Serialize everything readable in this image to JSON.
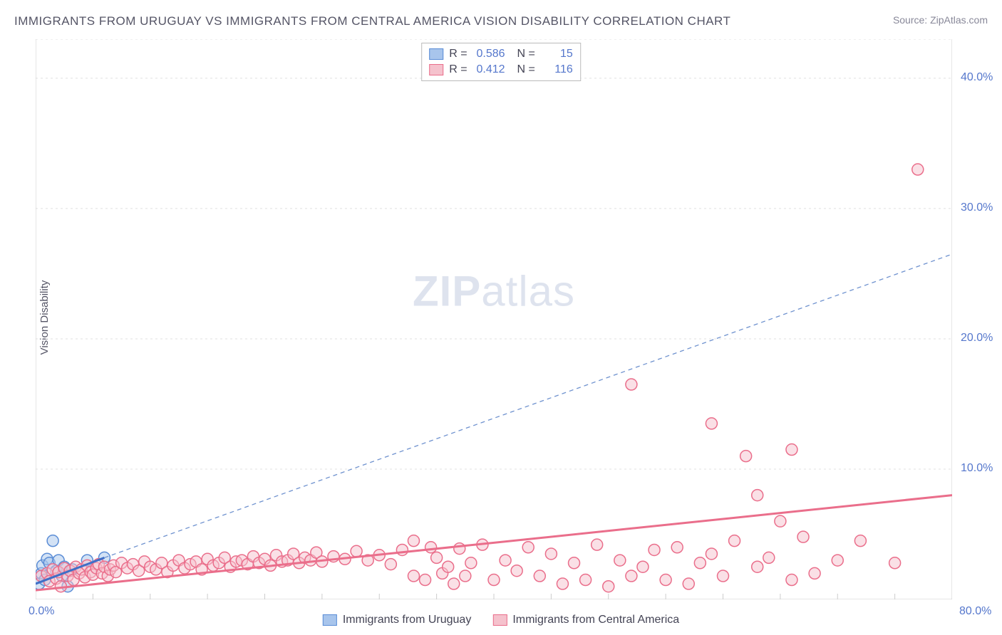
{
  "title": "IMMIGRANTS FROM URUGUAY VS IMMIGRANTS FROM CENTRAL AMERICA VISION DISABILITY CORRELATION CHART",
  "source": "Source: ZipAtlas.com",
  "watermark": {
    "zip": "ZIP",
    "atlas": "atlas"
  },
  "ylabel": "Vision Disability",
  "chart": {
    "type": "scatter",
    "background_color": "#ffffff",
    "grid_color": "#e0e0e0",
    "axis_line_color": "#cccccc",
    "xlim": [
      0,
      80
    ],
    "ylim": [
      0,
      43
    ],
    "x_ticks": [
      0,
      5,
      10,
      15,
      20,
      25,
      30,
      35,
      40,
      45,
      50,
      55,
      60,
      65,
      70,
      75,
      80
    ],
    "x_tick_labels": {
      "0": "0.0%",
      "80": "80.0%"
    },
    "y_gridlines": [
      10,
      20,
      30,
      40
    ],
    "y_tick_labels": {
      "10": "10.0%",
      "20": "20.0%",
      "30": "30.0%",
      "40": "40.0%"
    },
    "axis_label_color": "#5577cc",
    "axis_label_fontsize": 16,
    "marker_radius": 8,
    "marker_stroke_width": 1.5,
    "series": [
      {
        "name": "Immigrants from Uruguay",
        "R": "0.586",
        "N": "15",
        "fill_color": "#a8c5ec",
        "stroke_color": "#5b8dd6",
        "fill_opacity": 0.5,
        "trend_line": {
          "x1": 0,
          "y1": 1.2,
          "x2": 6,
          "y2": 3.2,
          "color": "#3f6fc7",
          "width": 3,
          "dash": "none"
        },
        "trend_extrapolation": {
          "x1": 6,
          "y1": 3.2,
          "x2": 80,
          "y2": 26.5,
          "color": "#6f92cf",
          "width": 1.3,
          "dash": "6,5"
        },
        "points": [
          [
            0.3,
            1.2
          ],
          [
            0.5,
            2.0
          ],
          [
            0.6,
            2.6
          ],
          [
            0.8,
            1.5
          ],
          [
            1.0,
            3.1
          ],
          [
            1.2,
            2.8
          ],
          [
            1.5,
            4.5
          ],
          [
            1.8,
            2.2
          ],
          [
            2.0,
            3.0
          ],
          [
            2.3,
            1.8
          ],
          [
            2.5,
            2.5
          ],
          [
            2.8,
            1.0
          ],
          [
            3.2,
            2.3
          ],
          [
            4.5,
            3.0
          ],
          [
            6.0,
            3.2
          ]
        ]
      },
      {
        "name": "Immigrants from Central America",
        "R": "0.412",
        "N": "116",
        "fill_color": "#f5c2cd",
        "stroke_color": "#ea6e8b",
        "fill_opacity": 0.5,
        "trend_line": {
          "x1": 0,
          "y1": 0.7,
          "x2": 80,
          "y2": 8.0,
          "color": "#ea6e8b",
          "width": 3,
          "dash": "none"
        },
        "points": [
          [
            0.5,
            1.8
          ],
          [
            1.0,
            2.0
          ],
          [
            1.2,
            1.4
          ],
          [
            1.5,
            2.3
          ],
          [
            1.8,
            1.6
          ],
          [
            2.0,
            2.1
          ],
          [
            2.2,
            1.0
          ],
          [
            2.5,
            2.4
          ],
          [
            2.8,
            1.8
          ],
          [
            3.0,
            2.2
          ],
          [
            3.3,
            1.5
          ],
          [
            3.5,
            2.5
          ],
          [
            3.8,
            2.0
          ],
          [
            4.0,
            2.3
          ],
          [
            4.3,
            1.7
          ],
          [
            4.5,
            2.6
          ],
          [
            4.8,
            2.1
          ],
          [
            5.0,
            1.9
          ],
          [
            5.3,
            2.4
          ],
          [
            5.5,
            2.7
          ],
          [
            5.8,
            2.0
          ],
          [
            6.0,
            2.5
          ],
          [
            6.3,
            1.8
          ],
          [
            6.5,
            2.3
          ],
          [
            6.8,
            2.6
          ],
          [
            7.0,
            2.1
          ],
          [
            7.5,
            2.8
          ],
          [
            8.0,
            2.4
          ],
          [
            8.5,
            2.7
          ],
          [
            9.0,
            2.2
          ],
          [
            9.5,
            2.9
          ],
          [
            10,
            2.5
          ],
          [
            10.5,
            2.3
          ],
          [
            11,
            2.8
          ],
          [
            11.5,
            2.1
          ],
          [
            12,
            2.6
          ],
          [
            12.5,
            3.0
          ],
          [
            13,
            2.4
          ],
          [
            13.5,
            2.7
          ],
          [
            14,
            2.9
          ],
          [
            14.5,
            2.3
          ],
          [
            15,
            3.1
          ],
          [
            15.5,
            2.6
          ],
          [
            16,
            2.8
          ],
          [
            16.5,
            3.2
          ],
          [
            17,
            2.5
          ],
          [
            17.5,
            2.9
          ],
          [
            18,
            3.0
          ],
          [
            18.5,
            2.7
          ],
          [
            19,
            3.3
          ],
          [
            19.5,
            2.8
          ],
          [
            20,
            3.1
          ],
          [
            20.5,
            2.6
          ],
          [
            21,
            3.4
          ],
          [
            21.5,
            2.9
          ],
          [
            22,
            3.0
          ],
          [
            22.5,
            3.5
          ],
          [
            23,
            2.8
          ],
          [
            23.5,
            3.2
          ],
          [
            24,
            3.0
          ],
          [
            24.5,
            3.6
          ],
          [
            25,
            2.9
          ],
          [
            26,
            3.3
          ],
          [
            27,
            3.1
          ],
          [
            28,
            3.7
          ],
          [
            29,
            3.0
          ],
          [
            30,
            3.4
          ],
          [
            31,
            2.7
          ],
          [
            32,
            3.8
          ],
          [
            33,
            4.5
          ],
          [
            33,
            1.8
          ],
          [
            34,
            1.5
          ],
          [
            34.5,
            4.0
          ],
          [
            35,
            3.2
          ],
          [
            35.5,
            2.0
          ],
          [
            36,
            2.5
          ],
          [
            36.5,
            1.2
          ],
          [
            37,
            3.9
          ],
          [
            37.5,
            1.8
          ],
          [
            38,
            2.8
          ],
          [
            39,
            4.2
          ],
          [
            40,
            1.5
          ],
          [
            41,
            3.0
          ],
          [
            42,
            2.2
          ],
          [
            43,
            4.0
          ],
          [
            44,
            1.8
          ],
          [
            45,
            3.5
          ],
          [
            46,
            1.2
          ],
          [
            47,
            2.8
          ],
          [
            48,
            1.5
          ],
          [
            49,
            4.2
          ],
          [
            50,
            1.0
          ],
          [
            51,
            3.0
          ],
          [
            52,
            1.8
          ],
          [
            52,
            16.5
          ],
          [
            53,
            2.5
          ],
          [
            54,
            3.8
          ],
          [
            55,
            1.5
          ],
          [
            56,
            4.0
          ],
          [
            57,
            1.2
          ],
          [
            58,
            2.8
          ],
          [
            59,
            3.5
          ],
          [
            59,
            13.5
          ],
          [
            60,
            1.8
          ],
          [
            61,
            4.5
          ],
          [
            62,
            11.0
          ],
          [
            63,
            2.5
          ],
          [
            63,
            8.0
          ],
          [
            64,
            3.2
          ],
          [
            65,
            6.0
          ],
          [
            66,
            1.5
          ],
          [
            67,
            4.8
          ],
          [
            66,
            11.5
          ],
          [
            68,
            2.0
          ],
          [
            70,
            3.0
          ],
          [
            72,
            4.5
          ],
          [
            75,
            2.8
          ],
          [
            77,
            33.0
          ]
        ]
      }
    ]
  },
  "legend_bottom": [
    {
      "label": "Immigrants from Uruguay",
      "fill": "#a8c5ec",
      "stroke": "#5b8dd6"
    },
    {
      "label": "Immigrants from Central America",
      "fill": "#f5c2cd",
      "stroke": "#ea6e8b"
    }
  ]
}
